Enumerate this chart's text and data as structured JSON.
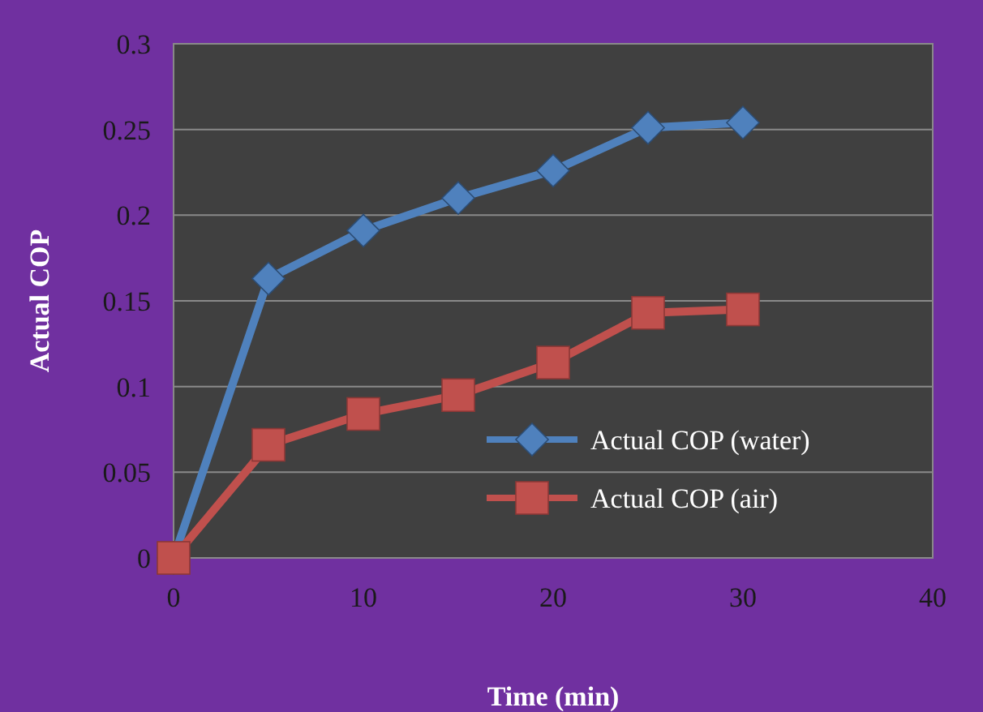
{
  "chart_data": {
    "type": "line",
    "xlabel": "Time (min)",
    "ylabel": "Actual COP",
    "x": [
      0,
      5,
      10,
      15,
      20,
      25,
      30
    ],
    "series": [
      {
        "name": "Actual COP (water)",
        "color": "#4f81bd",
        "marker": "diamond",
        "values": [
          0,
          0.163,
          0.191,
          0.21,
          0.226,
          0.251,
          0.254
        ]
      },
      {
        "name": "Actual COP (air)",
        "color": "#c0504d",
        "marker": "square",
        "values": [
          0,
          0.066,
          0.084,
          0.095,
          0.114,
          0.143,
          0.145
        ]
      }
    ],
    "xlim": [
      0,
      40
    ],
    "xticks": [
      0,
      10,
      20,
      30,
      40
    ],
    "ylim": [
      0,
      0.3
    ],
    "yticks": [
      0,
      0.05,
      0.1,
      0.15,
      0.2,
      0.25,
      0.3
    ],
    "grid": "y",
    "legend": "right",
    "line_style": "solid"
  }
}
